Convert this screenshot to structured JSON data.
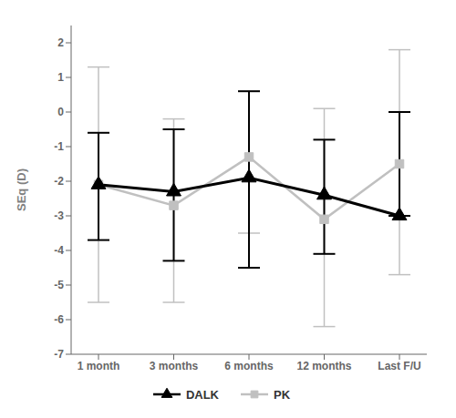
{
  "chart_data": {
    "type": "line",
    "categories": [
      "1 month",
      "3 months",
      "6 months",
      "12 months",
      "Last F/U"
    ],
    "y_label": "SEq (D)",
    "ylim": [
      -7,
      2.5
    ],
    "yticks": [
      -7,
      -6,
      -5,
      -4,
      -3,
      -2,
      -1,
      0,
      1,
      2
    ],
    "grid": false,
    "legend": "bottom",
    "series": [
      {
        "name": "DALK",
        "color": "#000000",
        "marker": "triangle",
        "line_style": "solid",
        "values": [
          -2.1,
          -2.3,
          -1.9,
          -2.4,
          -3.0
        ],
        "upper": [
          -0.6,
          -0.5,
          0.6,
          -0.8,
          0.0
        ],
        "lower": [
          -3.7,
          -4.3,
          -4.5,
          -4.1,
          -3.0
        ]
      },
      {
        "name": "PK",
        "color": "#c0c0c0",
        "marker": "square",
        "line_style": "solid",
        "values": [
          -2.1,
          -2.7,
          -1.3,
          -3.1,
          -1.5
        ],
        "upper": [
          1.3,
          -0.2,
          0.6,
          0.1,
          1.8
        ],
        "lower": [
          -5.5,
          -5.5,
          -3.5,
          -6.2,
          -4.7
        ]
      }
    ]
  }
}
